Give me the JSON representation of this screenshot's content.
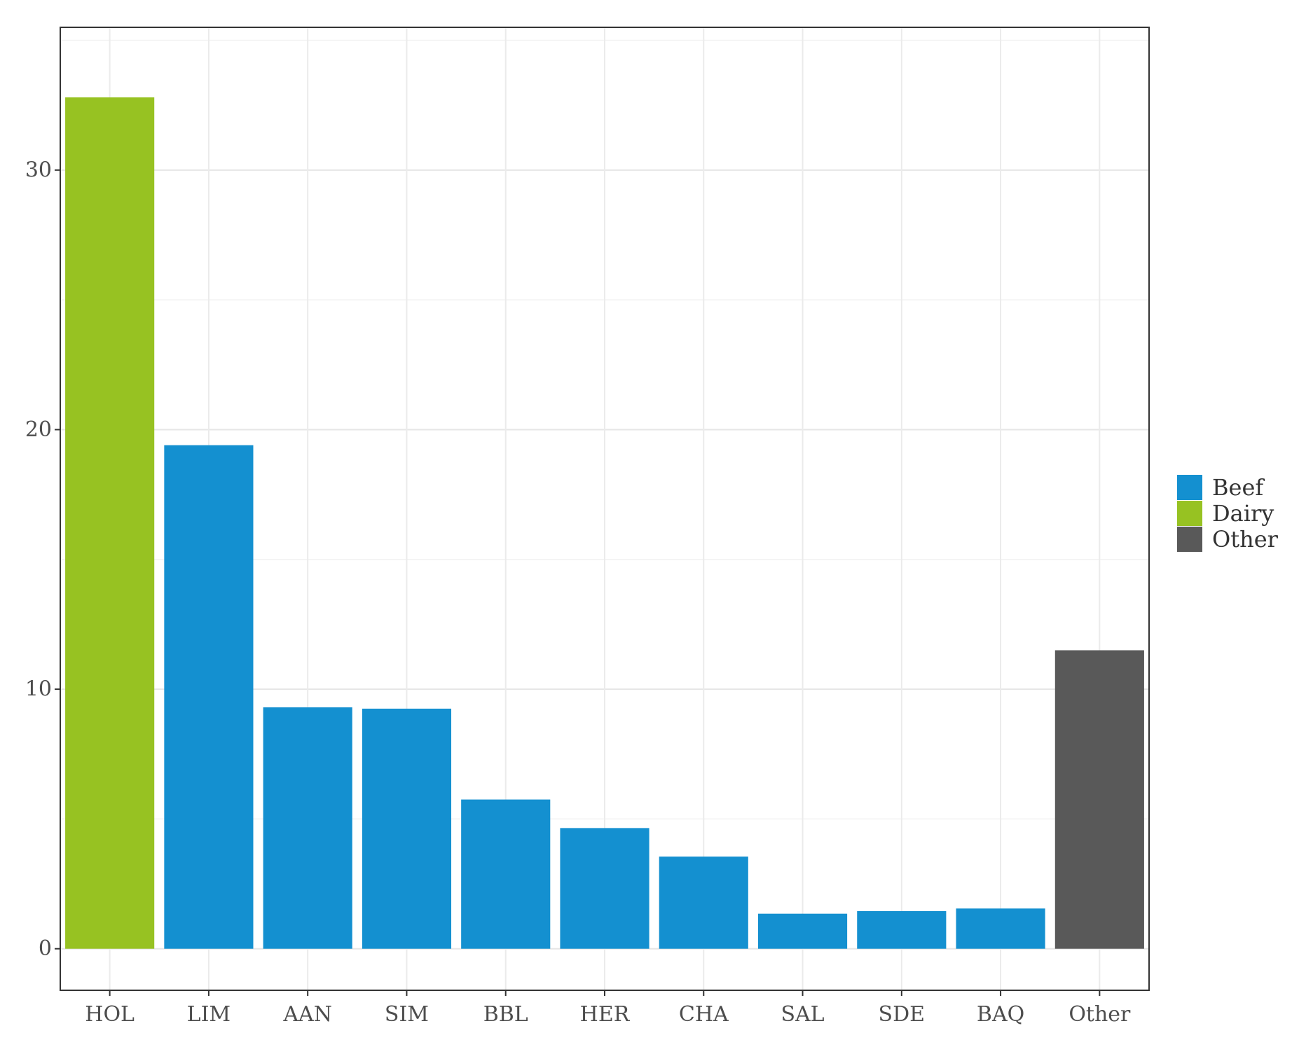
{
  "chart_data": {
    "type": "bar",
    "title": "",
    "xlabel": "",
    "ylabel": "",
    "categories": [
      "HOL",
      "LIM",
      "AAN",
      "SIM",
      "BBL",
      "HER",
      "CHA",
      "SAL",
      "SDE",
      "BAQ",
      "Other"
    ],
    "values": [
      32.8,
      19.4,
      9.3,
      9.25,
      5.75,
      4.65,
      3.55,
      1.35,
      1.45,
      1.55,
      11.5
    ],
    "groups": [
      "Dairy",
      "Beef",
      "Beef",
      "Beef",
      "Beef",
      "Beef",
      "Beef",
      "Beef",
      "Beef",
      "Beef",
      "Other"
    ],
    "ylim": [
      -1.6,
      35.5
    ],
    "yticks": [
      0,
      10,
      20,
      30
    ],
    "ytick_labels": [
      "0",
      "10",
      "20",
      "30"
    ],
    "grid": true,
    "legend": {
      "position": "right",
      "entries": [
        {
          "label": "Beef",
          "color": "#1490d0"
        },
        {
          "label": "Dairy",
          "color": "#97c222"
        },
        {
          "label": "Other",
          "color": "#595959"
        }
      ]
    }
  }
}
